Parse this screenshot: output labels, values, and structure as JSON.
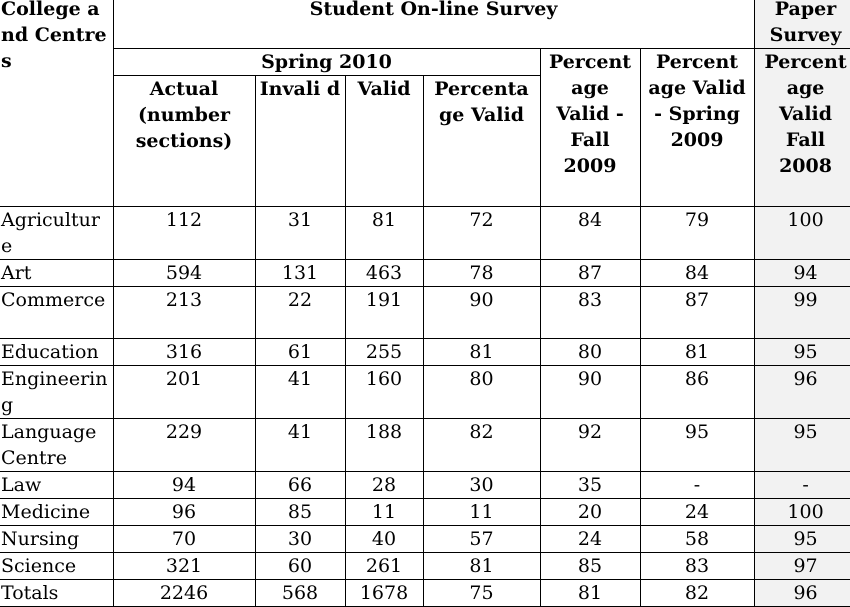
{
  "header": {
    "college": "College and Centres",
    "online_title": "Student On-line Survey",
    "paper_title": "Paper Survey",
    "spring_title": "Spring 2010",
    "columns": {
      "actual": "Actual (number sections)",
      "invalid": "Invali d",
      "valid": "Valid",
      "pct_valid": "Percenta ge Valid",
      "fall_2009": "Percent age Valid - Fall 2009",
      "spring_2009": "Percent age Valid - Spring 2009",
      "fall_2008": "Percent age Valid Fall 2008"
    }
  },
  "rows": [
    {
      "name": "Agriculture",
      "actual": "112",
      "invalid": "31",
      "valid": "81",
      "pct": "72",
      "f09": "84",
      "s09": "79",
      "f08": "100"
    },
    {
      "name": "Art",
      "actual": "594",
      "invalid": "131",
      "valid": "463",
      "pct": "78",
      "f09": "87",
      "s09": "84",
      "f08": "94"
    },
    {
      "name": "Commerce",
      "actual": "213",
      "invalid": "22",
      "valid": "191",
      "pct": "90",
      "f09": "83",
      "s09": "87",
      "f08": "99"
    },
    {
      "name": "Education",
      "actual": "316",
      "invalid": "61",
      "valid": "255",
      "pct": "81",
      "f09": "80",
      "s09": "81",
      "f08": "95"
    },
    {
      "name": "Engineering",
      "actual": "201",
      "invalid": "41",
      "valid": "160",
      "pct": "80",
      "f09": "90",
      "s09": "86",
      "f08": "96"
    },
    {
      "name": "Language Centre",
      "actual": "229",
      "invalid": "41",
      "valid": "188",
      "pct": "82",
      "f09": "92",
      "s09": "95",
      "f08": "95"
    },
    {
      "name": "Law",
      "actual": "94",
      "invalid": "66",
      "valid": "28",
      "pct": "30",
      "f09": "35",
      "s09": "-",
      "f08": "-"
    },
    {
      "name": "Medicine",
      "actual": "96",
      "invalid": "85",
      "valid": "11",
      "pct": "11",
      "f09": "20",
      "s09": "24",
      "f08": "100"
    },
    {
      "name": "Nursing",
      "actual": "70",
      "invalid": "30",
      "valid": "40",
      "pct": "57",
      "f09": "24",
      "s09": "58",
      "f08": "95"
    },
    {
      "name": "Science",
      "actual": "321",
      "invalid": "60",
      "valid": "261",
      "pct": "81",
      "f09": "85",
      "s09": "83",
      "f08": "97"
    },
    {
      "name": "Totals",
      "actual": "2246",
      "invalid": "568",
      "valid": "1678",
      "pct": "75",
      "f09": "81",
      "s09": "82",
      "f08": "96"
    }
  ]
}
